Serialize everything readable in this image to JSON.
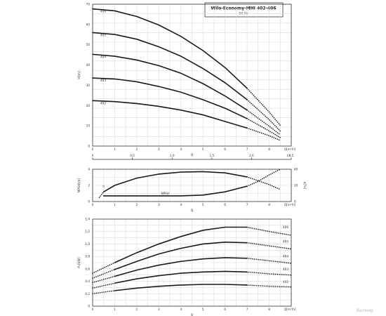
{
  "title": "Wilo-Economy-MHI 402-406",
  "subtitle": "50 Hz",
  "watermark": "Вилмир",
  "chart_data": [
    {
      "type": "line",
      "title": "Wilo-Economy-MHI 402-406",
      "subtitle": "50 Hz",
      "xlabel": "Q",
      "xunit": "Q[m³/h]",
      "ylabel": "H[m]",
      "xlim": [
        0,
        9
      ],
      "ylim": [
        0,
        75
      ],
      "x_ticks": [
        "0",
        "1",
        "2",
        "3",
        "4",
        "5",
        "6",
        "7",
        "8"
      ],
      "y_ticks": [
        "0",
        "10",
        "20",
        "30",
        "40",
        "50",
        "60",
        "70"
      ],
      "secondary_x_label": "l/s",
      "secondary_x_ticks": [
        "0",
        "0,5",
        "1,0",
        "1,5",
        "2,0",
        "2,5"
      ],
      "secondary_x_values": [
        0,
        0.5,
        1.0,
        1.5,
        2.0,
        2.5
      ],
      "grid": true,
      "series": [
        {
          "name": "406",
          "x": [
            0,
            1,
            2,
            3,
            4,
            5,
            6,
            7,
            8,
            8.5
          ],
          "y": [
            72.5,
            71.5,
            68.5,
            64,
            58,
            50.5,
            41.5,
            30.5,
            18,
            11
          ]
        },
        {
          "name": "405",
          "x": [
            0,
            1,
            2,
            3,
            4,
            5,
            6,
            7,
            8,
            8.5
          ],
          "y": [
            60,
            59,
            56.5,
            52.5,
            47.5,
            41,
            33.5,
            24.5,
            14,
            8
          ]
        },
        {
          "name": "404",
          "x": [
            0,
            1,
            2,
            3,
            4,
            5,
            6,
            7,
            8,
            8.5
          ],
          "y": [
            48.5,
            47.5,
            45.5,
            42.5,
            38.5,
            33,
            26.5,
            19,
            10.5,
            6
          ]
        },
        {
          "name": "403",
          "x": [
            0,
            1,
            2,
            3,
            4,
            5,
            6,
            7,
            8,
            8.5
          ],
          "y": [
            36,
            35.5,
            34,
            31.5,
            28.5,
            24.5,
            20,
            14.5,
            8,
            4.5
          ]
        },
        {
          "name": "402",
          "x": [
            0,
            1,
            2,
            3,
            4,
            5,
            6,
            7,
            8,
            8.5
          ],
          "y": [
            24,
            23.5,
            22.5,
            21,
            19,
            16.5,
            13,
            9.5,
            5.5,
            3
          ]
        }
      ]
    },
    {
      "type": "line",
      "xlabel": "Q",
      "xunit": "Q[m³/h]",
      "ylabel": "NPSH[m]",
      "ylabel_right": "η[%]",
      "xlim": [
        0,
        9
      ],
      "ylim": [
        0,
        4
      ],
      "ylim_right": [
        0,
        40
      ],
      "x_ticks": [
        "0",
        "1",
        "2",
        "3",
        "4",
        "5",
        "6",
        "7",
        "8"
      ],
      "y_ticks": [
        "0",
        "2",
        "4"
      ],
      "y_ticks_right": [
        "0",
        "20",
        "40"
      ],
      "grid": true,
      "series": [
        {
          "name": "η",
          "axis": "right",
          "x": [
            0.3,
            0.5,
            1,
            2,
            3,
            4,
            5,
            6,
            7,
            8,
            8.5
          ],
          "y": [
            5,
            12,
            20,
            29,
            34,
            36.5,
            37,
            35.5,
            30.5,
            21,
            15
          ]
        },
        {
          "name": "NPSH",
          "axis": "left",
          "x": [
            0.5,
            1,
            2,
            3,
            4,
            5,
            6,
            7,
            7.5,
            8,
            8.5
          ],
          "y": [
            0.7,
            0.7,
            0.7,
            0.7,
            0.7,
            0.8,
            1.2,
            1.9,
            2.5,
            3.3,
            4.0
          ]
        }
      ]
    },
    {
      "type": "line",
      "xlabel": "Q",
      "xunit": "Q[m³/h]",
      "ylabel": "P₂[kW]",
      "xlim": [
        0,
        9
      ],
      "ylim": [
        0,
        1.4
      ],
      "x_ticks": [
        "0",
        "1",
        "2",
        "3",
        "4",
        "5",
        "6",
        "7",
        "8"
      ],
      "y_ticks": [
        "0",
        "0,2",
        "0,4",
        "0,6",
        "0,8",
        "1,0",
        "1,2",
        "1,4"
      ],
      "grid": true,
      "series": [
        {
          "name": "406",
          "x": [
            0,
            1,
            2,
            3,
            4,
            5,
            6,
            7,
            8,
            9
          ],
          "y": [
            0.53,
            0.7,
            0.86,
            1.0,
            1.12,
            1.22,
            1.27,
            1.27,
            1.2,
            1.14
          ]
        },
        {
          "name": "405",
          "x": [
            0,
            1,
            2,
            3,
            4,
            5,
            6,
            7,
            8,
            9
          ],
          "y": [
            0.45,
            0.59,
            0.72,
            0.84,
            0.93,
            1.0,
            1.03,
            1.02,
            0.97,
            0.92
          ]
        },
        {
          "name": "404",
          "x": [
            0,
            1,
            2,
            3,
            4,
            5,
            6,
            7,
            8,
            9
          ],
          "y": [
            0.38,
            0.48,
            0.58,
            0.66,
            0.72,
            0.76,
            0.78,
            0.77,
            0.73,
            0.69
          ]
        },
        {
          "name": "403",
          "x": [
            0,
            1,
            2,
            3,
            4,
            5,
            6,
            7,
            8,
            9
          ],
          "y": [
            0.29,
            0.37,
            0.44,
            0.49,
            0.53,
            0.55,
            0.56,
            0.55,
            0.52,
            0.5
          ]
        },
        {
          "name": "402",
          "x": [
            0,
            1,
            2,
            3,
            4,
            5,
            6,
            7,
            8,
            9
          ],
          "y": [
            0.2,
            0.25,
            0.29,
            0.32,
            0.34,
            0.35,
            0.35,
            0.34,
            0.32,
            0.31
          ]
        }
      ]
    }
  ]
}
